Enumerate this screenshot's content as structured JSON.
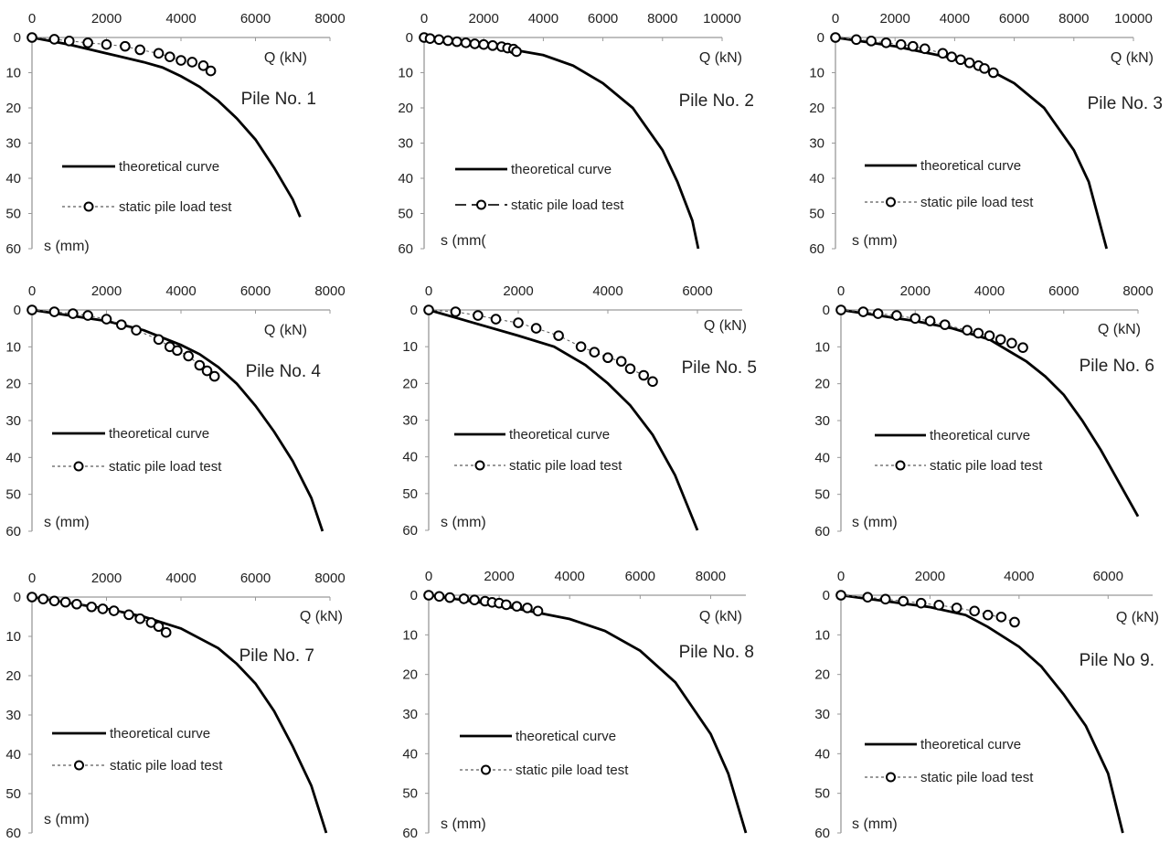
{
  "chart_data": [
    {
      "type": "line",
      "title": "Pile No. 1",
      "xlabel": "Q (kN)",
      "ylabel": "s (mm)",
      "xlim": [
        0,
        8000
      ],
      "ylim": [
        60,
        0
      ],
      "xticks": [
        "0",
        "2000",
        "4000",
        "6000",
        "8000"
      ],
      "yticks": [
        "0",
        "10",
        "20",
        "30",
        "40",
        "50",
        "60"
      ],
      "grid": false,
      "legend_position": "lower-left",
      "legend_test_style": "short-dash",
      "series": [
        {
          "name": "theoretical curve",
          "style": "solid",
          "x": [
            0,
            1000,
            2000,
            3000,
            3500,
            4000,
            4500,
            5000,
            5500,
            6000,
            6500,
            7000,
            7200
          ],
          "y": [
            0,
            2,
            4.5,
            7,
            8.5,
            11,
            14,
            18,
            23,
            29,
            37,
            46,
            51
          ]
        },
        {
          "name": "static pile load test",
          "style": "dashed-circle",
          "x": [
            0,
            600,
            1000,
            1500,
            2000,
            2500,
            2900,
            3400,
            3700,
            4000,
            4300,
            4600,
            4800
          ],
          "y": [
            0,
            0.5,
            1,
            1.5,
            2,
            2.5,
            3.5,
            4.5,
            5.5,
            6.5,
            7,
            8,
            9.5
          ]
        }
      ]
    },
    {
      "type": "line",
      "title": "Pile No. 2",
      "xlabel": "Q (kN)",
      "ylabel": "s (mm(",
      "xlim": [
        0,
        10000
      ],
      "ylim": [
        60,
        0
      ],
      "xticks": [
        "0",
        "2000",
        "4000",
        "6000",
        "8000",
        "10000"
      ],
      "yticks": [
        "0",
        "10",
        "20",
        "30",
        "40",
        "50",
        "60"
      ],
      "grid": false,
      "legend_position": "lower-left",
      "legend_test_style": "long-dash",
      "series": [
        {
          "name": "theoretical curve",
          "style": "solid",
          "x": [
            0,
            2000,
            4000,
            5000,
            6000,
            7000,
            8000,
            8500,
            9000,
            9200
          ],
          "y": [
            0,
            2,
            5,
            8,
            13,
            20,
            32,
            41,
            52,
            60
          ]
        },
        {
          "name": "static pile load test",
          "style": "dashed-circle",
          "x": [
            0,
            200,
            500,
            800,
            1100,
            1400,
            1700,
            2000,
            2300,
            2600,
            2800,
            3000,
            3100
          ],
          "y": [
            0,
            0.3,
            0.6,
            0.9,
            1.2,
            1.5,
            1.8,
            2,
            2.3,
            2.6,
            3,
            3.3,
            4
          ]
        }
      ]
    },
    {
      "type": "line",
      "title": "Pile No. 3",
      "xlabel": "Q (kN)",
      "ylabel": "s (mm)",
      "xlim": [
        0,
        10000
      ],
      "ylim": [
        60,
        0
      ],
      "xticks": [
        "0",
        "2000",
        "4000",
        "6000",
        "8000",
        "10000"
      ],
      "yticks": [
        "0",
        "10",
        "20",
        "30",
        "40",
        "50",
        "60"
      ],
      "grid": false,
      "legend_position": "lower-left",
      "legend_test_style": "short-dash",
      "series": [
        {
          "name": "theoretical curve",
          "style": "solid",
          "x": [
            0,
            2000,
            4000,
            5000,
            6000,
            7000,
            8000,
            8500,
            9100
          ],
          "y": [
            0,
            2.5,
            6,
            8.5,
            13,
            20,
            32,
            41,
            60
          ]
        },
        {
          "name": "static pile load test",
          "style": "dashed-circle",
          "x": [
            0,
            700,
            1200,
            1700,
            2200,
            2600,
            3000,
            3600,
            3900,
            4200,
            4500,
            4800,
            5000,
            5300
          ],
          "y": [
            0,
            0.6,
            1,
            1.5,
            2,
            2.5,
            3.2,
            4.5,
            5.5,
            6.3,
            7.2,
            8,
            8.8,
            10
          ]
        }
      ]
    },
    {
      "type": "line",
      "title": "Pile No. 4",
      "xlabel": "Q (kN)",
      "ylabel": "s (mm)",
      "xlim": [
        0,
        8000
      ],
      "ylim": [
        60,
        0
      ],
      "xticks": [
        "0",
        "2000",
        "4000",
        "6000",
        "8000"
      ],
      "yticks": [
        "0",
        "10",
        "20",
        "30",
        "40",
        "50",
        "60"
      ],
      "grid": false,
      "legend_position": "lower-left",
      "legend_test_style": "short-dash",
      "series": [
        {
          "name": "theoretical curve",
          "style": "solid",
          "x": [
            0,
            1000,
            2000,
            3000,
            4000,
            4500,
            5000,
            5500,
            6000,
            6500,
            7000,
            7500,
            7800
          ],
          "y": [
            0,
            1.5,
            3,
            5.5,
            9.5,
            12,
            15.5,
            20,
            26,
            33,
            41,
            51,
            60
          ]
        },
        {
          "name": "static pile load test",
          "style": "dashed-circle",
          "x": [
            0,
            600,
            1100,
            1500,
            2000,
            2400,
            2800,
            3400,
            3700,
            3900,
            4200,
            4500,
            4700,
            4900
          ],
          "y": [
            0,
            0.5,
            1,
            1.5,
            2.5,
            4,
            5.5,
            8,
            10,
            11,
            12.5,
            15,
            16.5,
            18
          ]
        }
      ]
    },
    {
      "type": "line",
      "title": "Pile No. 5",
      "xlabel": "Q (kN)",
      "ylabel": "s (mm)",
      "xlim": [
        0,
        7000
      ],
      "ylim": [
        60,
        0
      ],
      "xticks": [
        "0",
        "2000",
        "4000",
        "6000"
      ],
      "yticks": [
        "0",
        "10",
        "20",
        "30",
        "40",
        "50",
        "60"
      ],
      "grid": false,
      "legend_position": "lower-left",
      "legend_test_style": "short-dash",
      "series": [
        {
          "name": "theoretical curve",
          "style": "solid",
          "x": [
            0,
            1000,
            2000,
            2800,
            3500,
            4000,
            4500,
            5000,
            5500,
            6000
          ],
          "y": [
            0,
            3.5,
            7,
            10,
            15,
            20,
            26,
            34,
            45,
            60
          ]
        },
        {
          "name": "static pile load test",
          "style": "dashed-circle",
          "x": [
            0,
            600,
            1100,
            1500,
            2000,
            2400,
            2900,
            3400,
            3700,
            4000,
            4300,
            4500,
            4800,
            5000
          ],
          "y": [
            0,
            0.5,
            1.5,
            2.5,
            3.5,
            5,
            7,
            10,
            11.5,
            13,
            14,
            16,
            17.8,
            19.5
          ]
        }
      ]
    },
    {
      "type": "line",
      "title": "Pile No. 6",
      "xlabel": "Q (kN)",
      "ylabel": "s (mm)",
      "xlim": [
        0,
        8000
      ],
      "ylim": [
        60,
        0
      ],
      "xticks": [
        "0",
        "2000",
        "4000",
        "6000",
        "8000"
      ],
      "yticks": [
        "0",
        "10",
        "20",
        "30",
        "40",
        "50",
        "60"
      ],
      "grid": false,
      "legend_position": "lower-left",
      "legend_test_style": "short-dash",
      "series": [
        {
          "name": "theoretical curve",
          "style": "solid",
          "x": [
            0,
            1000,
            2000,
            3000,
            4000,
            4500,
            5000,
            5500,
            6000,
            6500,
            7000,
            7500,
            8000
          ],
          "y": [
            0,
            1.5,
            3,
            5,
            8,
            11,
            14,
            18,
            23,
            30,
            38,
            47,
            56
          ]
        },
        {
          "name": "static pile load test",
          "style": "dashed-circle",
          "x": [
            0,
            600,
            1000,
            1500,
            2000,
            2400,
            2800,
            3400,
            3700,
            4000,
            4300,
            4600,
            4900
          ],
          "y": [
            0,
            0.5,
            1,
            1.5,
            2.3,
            3,
            4,
            5.5,
            6.3,
            7,
            8,
            9,
            10.2
          ]
        }
      ]
    },
    {
      "type": "line",
      "title": "Pile No. 7",
      "xlabel": "Q (kN)",
      "ylabel": "s (mm)",
      "xlim": [
        0,
        8000
      ],
      "ylim": [
        60,
        0
      ],
      "xticks": [
        "0",
        "2000",
        "4000",
        "6000",
        "8000"
      ],
      "yticks": [
        "0",
        "10",
        "20",
        "30",
        "40",
        "50",
        "60"
      ],
      "grid": false,
      "legend_position": "lower-left",
      "legend_test_style": "short-dash",
      "series": [
        {
          "name": "theoretical curve",
          "style": "solid",
          "x": [
            0,
            1000,
            2000,
            3000,
            4000,
            5000,
            5500,
            6000,
            6500,
            7000,
            7500,
            7900
          ],
          "y": [
            0,
            1.5,
            3,
            5,
            8,
            13,
            17,
            22,
            29,
            38,
            48,
            60
          ]
        },
        {
          "name": "static pile load test",
          "style": "dashed-circle",
          "x": [
            0,
            300,
            600,
            900,
            1200,
            1600,
            1900,
            2200,
            2600,
            2900,
            3200,
            3400,
            3600
          ],
          "y": [
            0,
            0.5,
            1,
            1.3,
            1.8,
            2.5,
            3,
            3.5,
            4.5,
            5.5,
            6.5,
            7.5,
            9
          ]
        }
      ]
    },
    {
      "type": "line",
      "title": "Pile No. 8",
      "xlabel": "Q (kN)",
      "ylabel": "s (mm)",
      "xlim": [
        0,
        9000
      ],
      "ylim": [
        60,
        0
      ],
      "xticks": [
        "0",
        "2000",
        "4000",
        "6000",
        "8000"
      ],
      "yticks": [
        "0",
        "10",
        "20",
        "30",
        "40",
        "50",
        "60"
      ],
      "grid": false,
      "legend_position": "lower-left",
      "legend_test_style": "short-dash",
      "series": [
        {
          "name": "theoretical curve",
          "style": "solid",
          "x": [
            0,
            2000,
            4000,
            5000,
            6000,
            7000,
            8000,
            8500,
            9000
          ],
          "y": [
            0,
            2.5,
            6,
            9,
            14,
            22,
            35,
            45,
            60
          ]
        },
        {
          "name": "static pile load test",
          "style": "dashed-circle",
          "x": [
            0,
            300,
            600,
            1000,
            1300,
            1600,
            1800,
            2000,
            2200,
            2500,
            2800,
            3100
          ],
          "y": [
            0,
            0.3,
            0.6,
            0.9,
            1.2,
            1.5,
            1.8,
            2,
            2.4,
            2.8,
            3.2,
            4
          ]
        }
      ]
    },
    {
      "type": "line",
      "title": "Pile No 9.",
      "xlabel": "Q (kN)",
      "ylabel": "s (mm)",
      "xlim": [
        0,
        7000
      ],
      "ylim": [
        60,
        0
      ],
      "xticks": [
        "0",
        "2000",
        "4000",
        "6000"
      ],
      "yticks": [
        "0",
        "10",
        "20",
        "30",
        "40",
        "50",
        "60"
      ],
      "grid": false,
      "legend_position": "lower-left",
      "legend_test_style": "short-dash",
      "series": [
        {
          "name": "theoretical curve",
          "style": "solid",
          "x": [
            0,
            1000,
            2000,
            2800,
            3300,
            4000,
            4500,
            5000,
            5500,
            6000,
            6330
          ],
          "y": [
            0,
            1.5,
            3,
            5,
            8,
            13,
            18,
            25,
            33,
            45,
            60
          ]
        },
        {
          "name": "static pile load test",
          "style": "dashed-circle",
          "x": [
            0,
            600,
            1000,
            1400,
            1800,
            2200,
            2600,
            3000,
            3300,
            3600,
            3900
          ],
          "y": [
            0,
            0.5,
            1,
            1.5,
            2,
            2.5,
            3.2,
            4,
            5,
            5.5,
            6.8
          ]
        }
      ]
    }
  ]
}
